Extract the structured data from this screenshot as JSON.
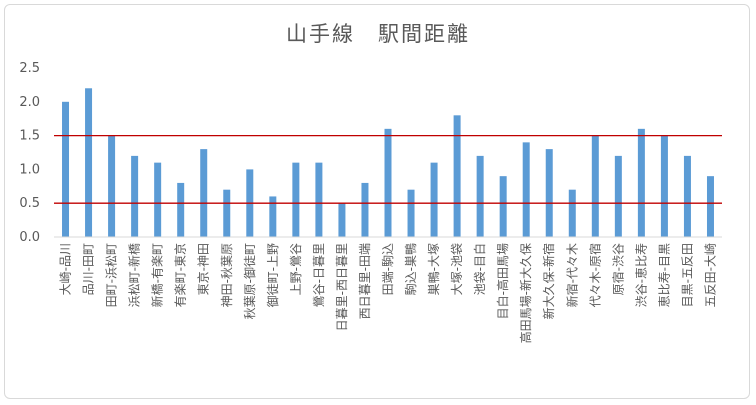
{
  "chart_data": {
    "type": "bar",
    "title": "山手線　駅間距離",
    "categories": [
      "大崎-品川",
      "品川-田町",
      "田町-浜松町",
      "浜松町-新橋",
      "新橋-有楽町",
      "有楽町-東京",
      "東京-神田",
      "神田-秋葉原",
      "秋葉原-御徒町",
      "御徒町-上野",
      "上野-鶯谷",
      "鶯谷-日暮里",
      "日暮里-西日暮里",
      "西日暮里-田端",
      "田端-駒込",
      "駒込-巣鴨",
      "巣鴨-大塚",
      "大塚-池袋",
      "池袋-目白",
      "目白-高田馬場",
      "高田馬場-新大久保",
      "新大久保-新宿",
      "新宿-代々木",
      "代々木-原宿",
      "原宿-渋谷",
      "渋谷-恵比寿",
      "恵比寿-目黒",
      "目黒-五反田",
      "五反田-大崎"
    ],
    "values": [
      2.0,
      2.2,
      1.5,
      1.2,
      1.1,
      0.8,
      1.3,
      0.7,
      1.0,
      0.6,
      1.1,
      1.1,
      0.5,
      0.8,
      1.6,
      0.7,
      1.1,
      1.8,
      1.2,
      0.9,
      1.4,
      1.3,
      0.7,
      1.5,
      1.2,
      1.6,
      1.5,
      1.2,
      0.9
    ],
    "ylim": [
      0,
      2.5
    ],
    "yticks": [
      "0.0",
      "0.5",
      "1.0",
      "1.5",
      "2.0",
      "2.5"
    ],
    "reference_lines": [
      0.5,
      1.5
    ],
    "grid": false,
    "legend": "none",
    "colors": {
      "bar": "#5b9bd5",
      "reference_line": "#c00000",
      "axis": "#d9d9d9",
      "text": "#595959"
    }
  }
}
